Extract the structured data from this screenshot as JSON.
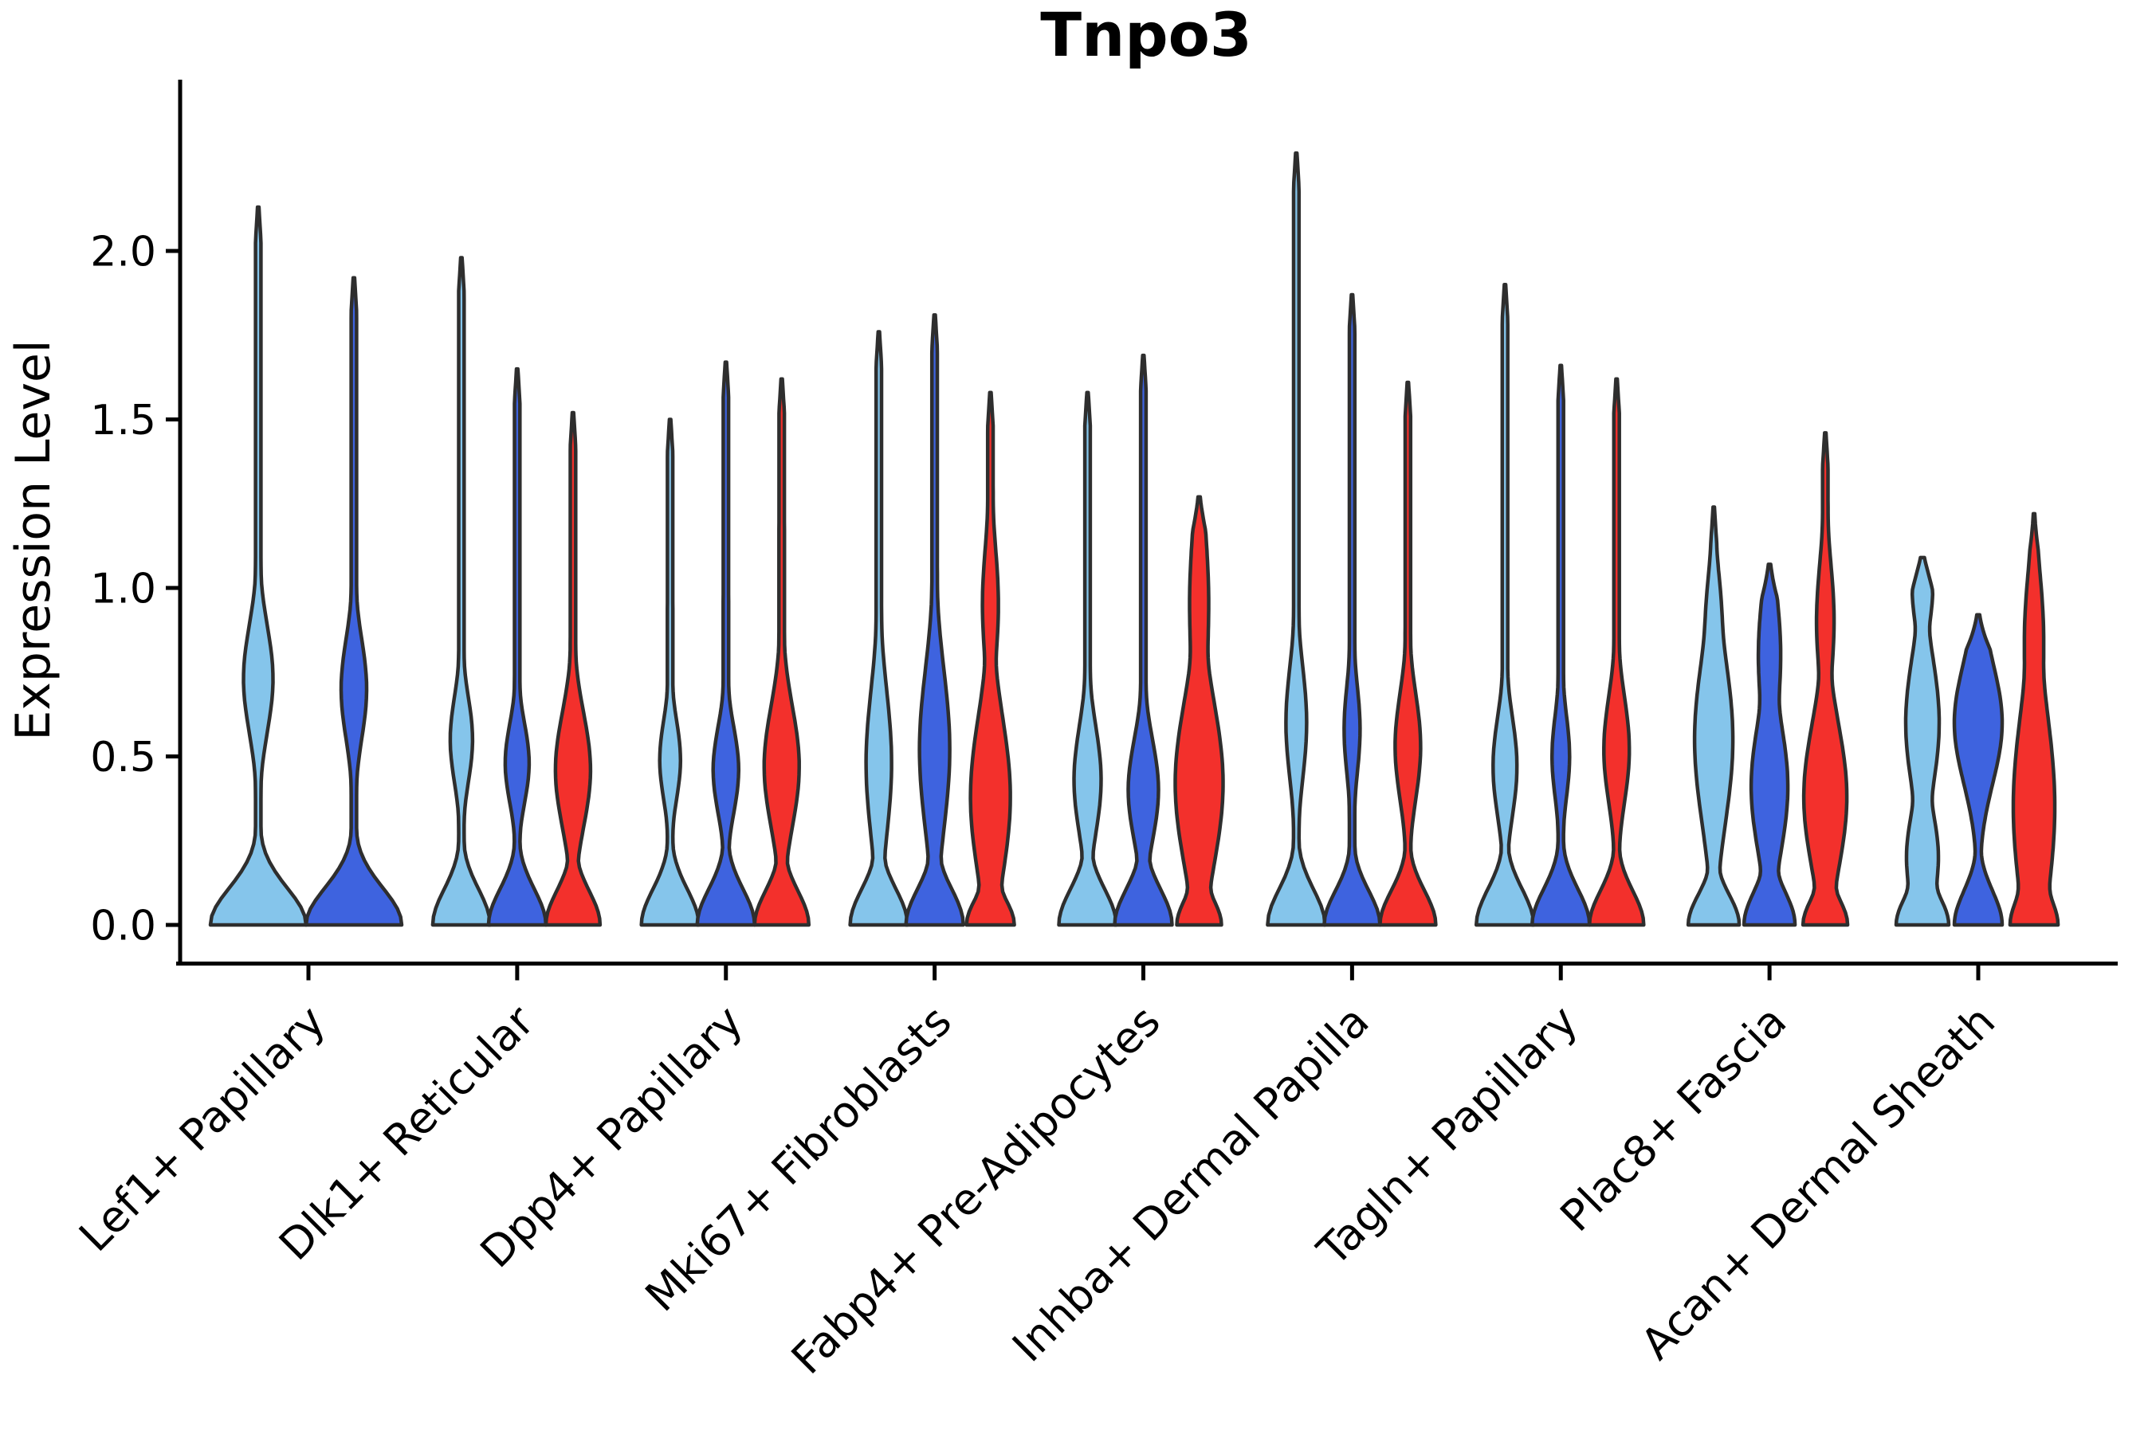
{
  "title": "Tnpo3",
  "axes": {
    "ylabel": "Expression Level",
    "ytick_labels": [
      "0.0",
      "0.5",
      "1.0",
      "1.5",
      "2.0"
    ],
    "categories": [
      "Lef1+ Papillary",
      "Dlk1+ Reticular",
      "Dpp4+ Papillary",
      "Mki67+ Fibroblasts",
      "Fabp4+ Pre-Adipocytes",
      "Inhba+ Dermal Papilla",
      "Tagln+ Papillary",
      "Plac8+ Fascia",
      "Acan+ Dermal Sheath"
    ]
  },
  "colors": {
    "series": [
      "#85C5EB",
      "#3E63DF",
      "#F3302C"
    ],
    "outline": "#2e2e2e",
    "axis": "#000000",
    "background": "#ffffff"
  },
  "chart_data": {
    "type": "violin",
    "title": "Tnpo3",
    "ylabel": "Expression Level",
    "ylim": [
      0,
      2.42
    ],
    "yticks": [
      0,
      0.5,
      1.0,
      1.5,
      2.0
    ],
    "grid": false,
    "legend": "none",
    "categories": [
      "Lef1+ Papillary",
      "Dlk1+ Reticular",
      "Dpp4+ Papillary",
      "Mki67+ Fibroblasts",
      "Fabp4+ Pre-Adipocytes",
      "Inhba+ Dermal Papilla",
      "Tagln+ Papillary",
      "Plac8+ Fascia",
      "Acan+ Dermal Sheath"
    ],
    "series_colors": [
      "#85C5EB",
      "#3E63DF",
      "#F3302C"
    ],
    "note": "Each group shows up to 3 dodged violins (light blue, royal blue, red); all densities are anchored at expression 0 with a basal bulge. 'peak' is the max expression reached by each violin; 'bumps' are estimated density modes as [center_value, sigma_value, halfwidth_px]; 'base' is [halfwidth_px, sigma_value] of the zero-expression bulge.",
    "groups": [
      {
        "category": "Lef1+ Papillary",
        "violins": [
          {
            "series": 0,
            "peak": 2.13,
            "base": [
              60,
              0.11
            ],
            "bumps": [
              [
                0.73,
                0.16,
                18.5
              ]
            ]
          },
          {
            "series": 1,
            "peak": 1.92,
            "base": [
              60,
              0.11
            ],
            "bumps": [
              [
                0.7,
                0.15,
                16
              ]
            ]
          }
        ]
      },
      {
        "category": "Dlk1+ Reticular",
        "violins": [
          {
            "series": 0,
            "peak": 1.98,
            "base": [
              36,
              0.105
            ],
            "bumps": [
              [
                0.55,
                0.13,
                14
              ]
            ]
          },
          {
            "series": 1,
            "peak": 1.65,
            "base": [
              36,
              0.105
            ],
            "bumps": [
              [
                0.48,
                0.12,
                15
              ]
            ]
          },
          {
            "series": 2,
            "peak": 1.52,
            "base": [
              34,
              0.1
            ],
            "bumps": [
              [
                0.46,
                0.17,
                22
              ]
            ]
          }
        ]
      },
      {
        "category": "Dpp4+ Papillary",
        "violins": [
          {
            "series": 0,
            "peak": 1.5,
            "base": [
              36,
              0.105
            ],
            "bumps": [
              [
                0.49,
                0.12,
                13
              ]
            ]
          },
          {
            "series": 1,
            "peak": 1.67,
            "base": [
              36,
              0.105
            ],
            "bumps": [
              [
                0.46,
                0.13,
                16
              ]
            ]
          },
          {
            "series": 2,
            "peak": 1.62,
            "base": [
              34,
              0.1
            ],
            "bumps": [
              [
                0.47,
                0.18,
                22
              ]
            ]
          }
        ]
      },
      {
        "category": "Mki67+ Fibroblasts",
        "violins": [
          {
            "series": 0,
            "peak": 1.76,
            "base": [
              36,
              0.105
            ],
            "bumps": [
              [
                0.48,
                0.22,
                16
              ]
            ]
          },
          {
            "series": 1,
            "peak": 1.81,
            "base": [
              36,
              0.105
            ],
            "bumps": [
              [
                0.52,
                0.24,
                19
              ]
            ]
          },
          {
            "series": 2,
            "peak": 1.58,
            "base": [
              30,
              0.08
            ],
            "bumps": [
              [
                0.38,
                0.24,
                25
              ],
              [
                0.95,
                0.18,
                10
              ]
            ]
          }
        ]
      },
      {
        "category": "Fabp4+ Pre-Adipocytes",
        "violins": [
          {
            "series": 0,
            "peak": 1.58,
            "base": [
              36,
              0.105
            ],
            "bumps": [
              [
                0.43,
                0.16,
                17
              ]
            ]
          },
          {
            "series": 1,
            "peak": 1.69,
            "base": [
              36,
              0.105
            ],
            "bumps": [
              [
                0.4,
                0.15,
                19
              ]
            ]
          },
          {
            "series": 2,
            "peak": 1.27,
            "base": [
              28,
              0.08
            ],
            "bumps": [
              [
                0.42,
                0.25,
                30
              ],
              [
                0.95,
                0.25,
                12
              ]
            ]
          }
        ]
      },
      {
        "category": "Inhba+ Dermal Papilla",
        "violins": [
          {
            "series": 0,
            "peak": 2.29,
            "base": [
              36,
              0.105
            ],
            "bumps": [
              [
                0.6,
                0.17,
                13
              ]
            ]
          },
          {
            "series": 1,
            "peak": 1.87,
            "base": [
              35,
              0.1
            ],
            "bumps": [
              [
                0.58,
                0.14,
                10
              ]
            ]
          },
          {
            "series": 2,
            "peak": 1.61,
            "base": [
              35,
              0.1
            ],
            "bumps": [
              [
                0.53,
                0.16,
                16
              ]
            ]
          }
        ]
      },
      {
        "category": "Tagln+ Papillary",
        "violins": [
          {
            "series": 0,
            "peak": 1.9,
            "base": [
              36,
              0.105
            ],
            "bumps": [
              [
                0.47,
                0.15,
                15
              ]
            ]
          },
          {
            "series": 1,
            "peak": 1.66,
            "base": [
              36,
              0.105
            ],
            "bumps": [
              [
                0.5,
                0.13,
                11
              ]
            ]
          },
          {
            "series": 2,
            "peak": 1.62,
            "base": [
              34,
              0.1
            ],
            "bumps": [
              [
                0.52,
                0.16,
                16
              ]
            ]
          }
        ]
      },
      {
        "category": "Plac8+ Fascia",
        "violins": [
          {
            "series": 0,
            "peak": 1.24,
            "base": [
              32,
              0.09
            ],
            "bumps": [
              [
                0.55,
                0.25,
                24
              ],
              [
                0.9,
                0.15,
                10
              ]
            ]
          },
          {
            "series": 1,
            "peak": 1.07,
            "base": [
              32,
              0.1
            ],
            "bumps": [
              [
                0.41,
                0.2,
                23
              ],
              [
                0.8,
                0.2,
                14
              ]
            ]
          },
          {
            "series": 2,
            "peak": 1.46,
            "base": [
              28,
              0.08
            ],
            "bumps": [
              [
                0.38,
                0.22,
                27
              ],
              [
                0.9,
                0.18,
                11
              ]
            ]
          }
        ]
      },
      {
        "category": "Acan+ Dermal Sheath",
        "violins": [
          {
            "series": 0,
            "peak": 1.09,
            "base": [
              33,
              0.09
            ],
            "bumps": [
              [
                0.2,
                0.15,
                20
              ],
              [
                0.6,
                0.2,
                21
              ],
              [
                1.0,
                0.12,
                13
              ]
            ]
          },
          {
            "series": 1,
            "peak": 0.92,
            "base": [
              30,
              0.1
            ],
            "bumps": [
              [
                0.6,
                0.18,
                30
              ],
              [
                0.8,
                0.12,
                10
              ]
            ]
          },
          {
            "series": 2,
            "peak": 1.22,
            "base": [
              30,
              0.09
            ],
            "bumps": [
              [
                0.35,
                0.3,
                26
              ],
              [
                0.85,
                0.2,
                12
              ]
            ]
          }
        ]
      }
    ]
  }
}
